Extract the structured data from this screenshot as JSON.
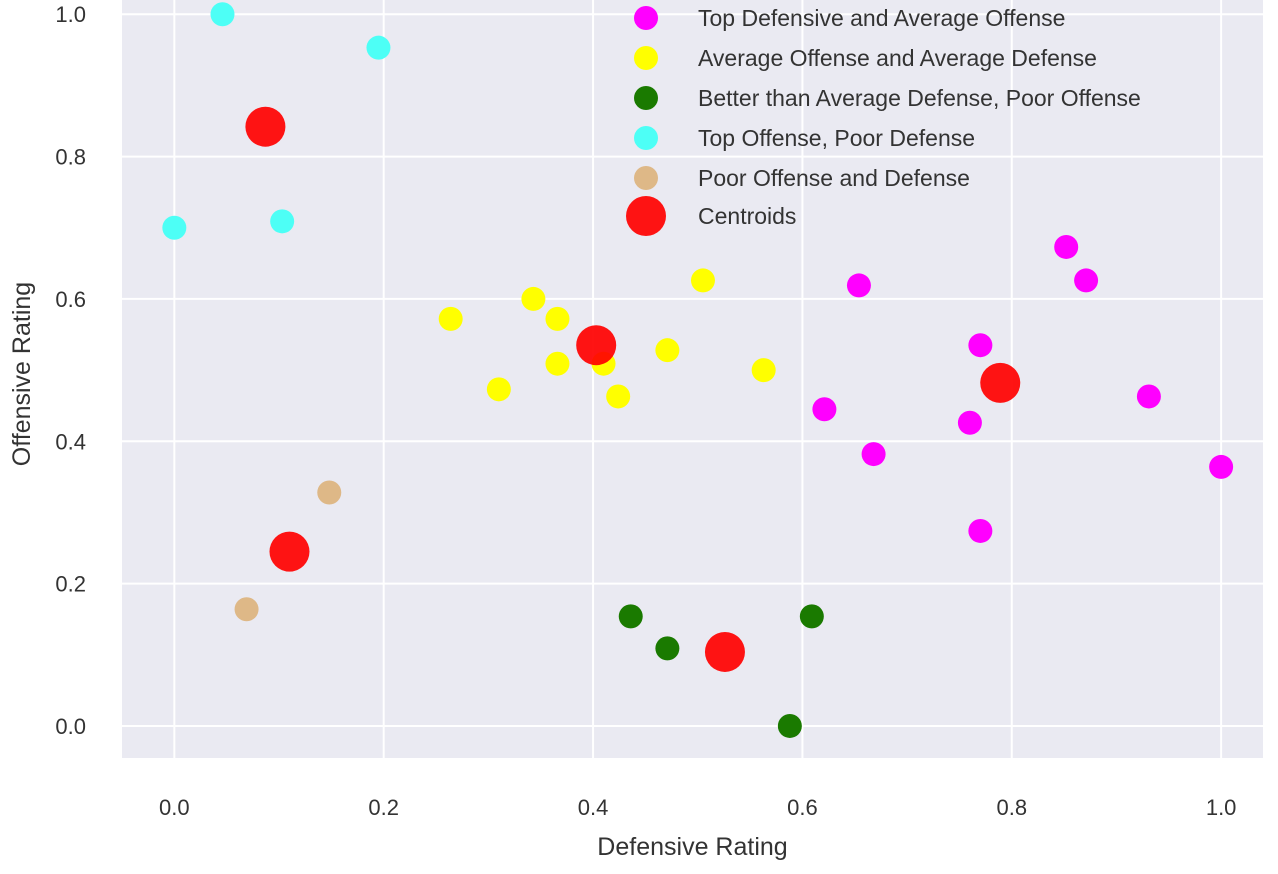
{
  "chart_data": {
    "type": "scatter",
    "title": "",
    "xlabel": "Defensive Rating",
    "ylabel": "Offensive Rating",
    "xlim": [
      -0.05,
      1.04
    ],
    "ylim": [
      -0.045,
      1.02
    ],
    "xticks": [
      "0.0",
      "0.2",
      "0.4",
      "0.6",
      "0.8",
      "1.0"
    ],
    "yticks": [
      "0.0",
      "0.2",
      "0.4",
      "0.6",
      "0.8",
      "1.0"
    ],
    "grid": true,
    "legend_position": "top-right",
    "colors": {
      "background": "#eaeaf2",
      "grid": "#ffffff"
    },
    "series": [
      {
        "name": "Top Defensive and Average Offense",
        "color": "#ff00ff",
        "points": [
          [
            0.654,
            0.619
          ],
          [
            0.852,
            0.673
          ],
          [
            0.871,
            0.626
          ],
          [
            0.77,
            0.535
          ],
          [
            0.621,
            0.445
          ],
          [
            0.76,
            0.426
          ],
          [
            0.668,
            0.382
          ],
          [
            0.931,
            0.463
          ],
          [
            1.0,
            0.364
          ],
          [
            0.77,
            0.274
          ]
        ]
      },
      {
        "name": "Average Offense and Average Defense",
        "color": "#ffff00",
        "points": [
          [
            0.505,
            0.626
          ],
          [
            0.343,
            0.6
          ],
          [
            0.366,
            0.572
          ],
          [
            0.264,
            0.572
          ],
          [
            0.471,
            0.528
          ],
          [
            0.366,
            0.509
          ],
          [
            0.41,
            0.509
          ],
          [
            0.563,
            0.5
          ],
          [
            0.31,
            0.473
          ],
          [
            0.424,
            0.463
          ]
        ]
      },
      {
        "name": "Better than Average Defense, Poor Offense",
        "color": "#1a7a00",
        "points": [
          [
            0.436,
            0.154
          ],
          [
            0.609,
            0.154
          ],
          [
            0.471,
            0.109
          ],
          [
            0.588,
            0.0
          ]
        ]
      },
      {
        "name": "Top Offense, Poor Defense",
        "color": "#4dfff6",
        "points": [
          [
            0.046,
            1.0
          ],
          [
            0.195,
            0.953
          ],
          [
            0.0,
            0.7
          ],
          [
            0.103,
            0.709
          ]
        ]
      },
      {
        "name": "Poor Offense and Defense",
        "color": "#deb887",
        "points": [
          [
            0.148,
            0.328
          ],
          [
            0.069,
            0.164
          ]
        ]
      },
      {
        "name": "Centroids",
        "color": "#ff0000",
        "points": [
          [
            0.087,
            0.842
          ],
          [
            0.403,
            0.535
          ],
          [
            0.789,
            0.482
          ],
          [
            0.11,
            0.245
          ],
          [
            0.526,
            0.104
          ]
        ]
      }
    ]
  }
}
